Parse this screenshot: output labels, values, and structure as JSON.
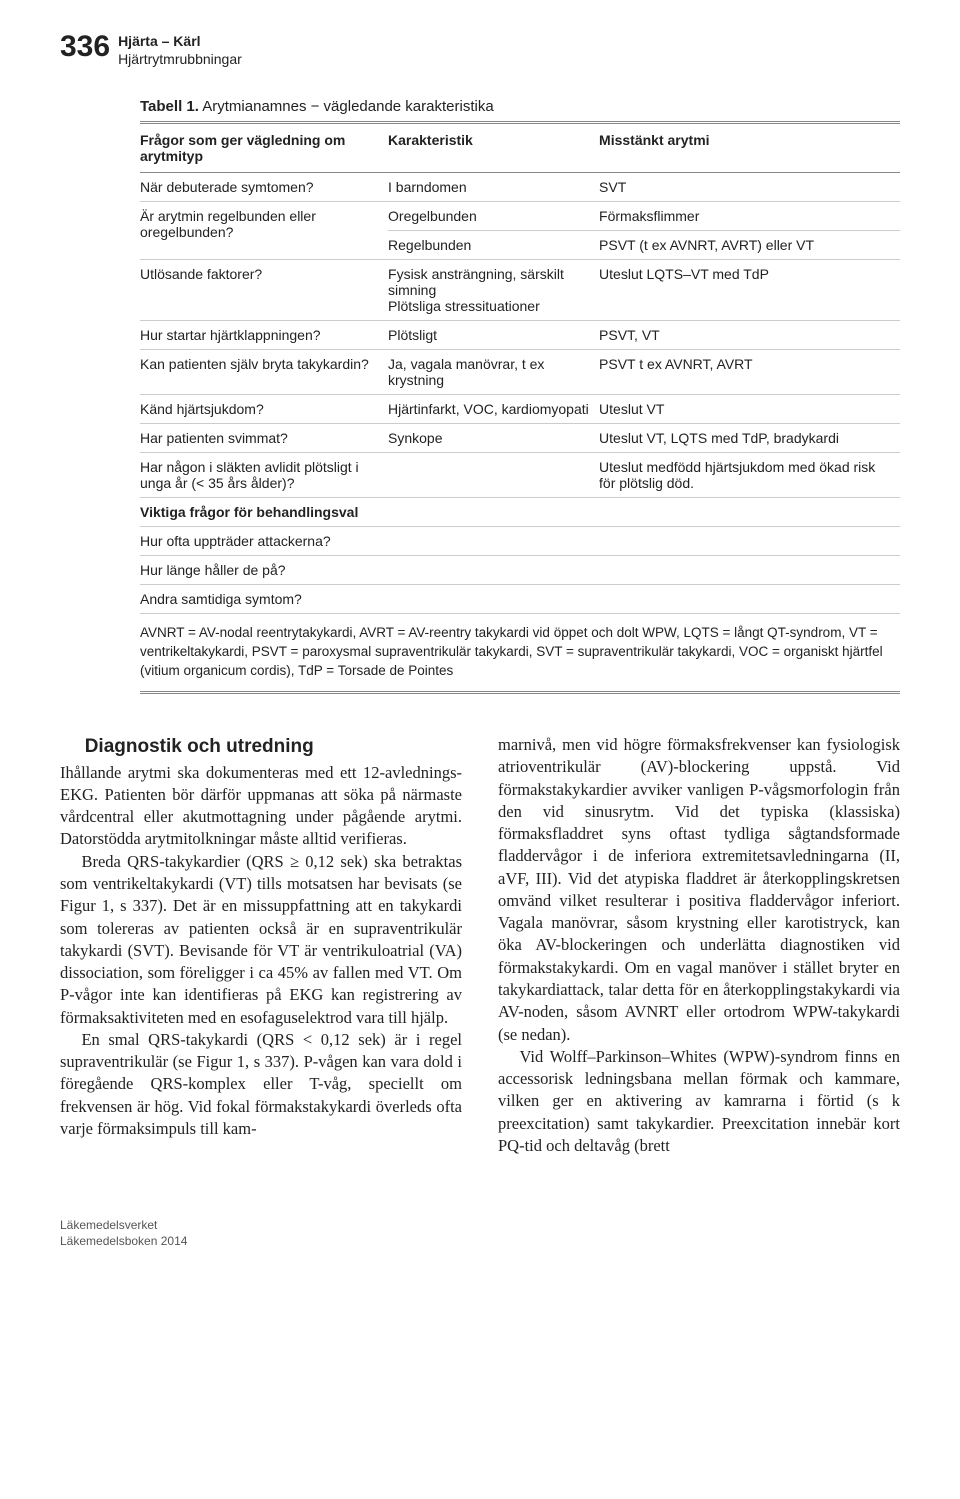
{
  "header": {
    "page_number": "336",
    "line1": "Hjärta – Kärl",
    "line2": "Hjärtrytmrubbningar"
  },
  "table": {
    "title_bold": "Tabell 1.",
    "title_rest": " Arytmianamnes − vägledande karakteristika",
    "columns": [
      "Frågor som ger vägledning om arytmityp",
      "Karakteristik",
      "Misstänkt arytmi"
    ],
    "rows": [
      {
        "q": "När debuterade symtomen?",
        "k": "I barndomen",
        "m": "SVT"
      },
      {
        "q": "Är arytmin regelbunden eller oregelbunden?",
        "k_multi": [
          "Oregelbunden",
          "Regelbunden"
        ],
        "m_multi": [
          "Förmaksflimmer",
          "PSVT (t ex AVNRT, AVRT) eller VT"
        ]
      },
      {
        "q": "Utlösande faktorer?",
        "k": "Fysisk ansträngning, särskilt simning\nPlötsliga stressituationer",
        "m": "Uteslut LQTS–VT med TdP"
      },
      {
        "q": "Hur startar hjärtklappningen?",
        "k": "Plötsligt",
        "m": "PSVT, VT"
      },
      {
        "q": "Kan patienten själv bryta takykardin?",
        "k": "Ja, vagala manövrar, t ex krystning",
        "m": "PSVT t ex AVNRT, AVRT"
      },
      {
        "q": "Känd hjärtsjukdom?",
        "k": "Hjärtinfarkt, VOC, kardiomyopati",
        "m": "Uteslut VT"
      },
      {
        "q": "Har patienten svimmat?",
        "k": "Synkope",
        "m": "Uteslut VT, LQTS med TdP, bradykardi"
      },
      {
        "q": "Har någon i släkten avlidit plötsligt i unga år (< 35 års ålder)?",
        "k": "",
        "m": "Uteslut medfödd hjärtsjukdom med ökad risk för plötslig död."
      },
      {
        "q": "Viktiga frågor för behandlingsval",
        "bold": true
      },
      {
        "q": "Hur ofta uppträder attackerna?"
      },
      {
        "q": "Hur länge håller de på?"
      },
      {
        "q": "Andra samtidiga symtom?"
      }
    ],
    "abbrev": "AVNRT = AV-nodal reentrytakykardi, AVRT = AV-reentry takykardi vid öppet och dolt WPW, LQTS = långt QT-syndrom, VT = ventrikeltakykardi, PSVT = paroxysmal supraventrikulär takykardi, SVT = supraventrikulär takykardi, VOC = organiskt hjärtfel (vitium organicum cordis), TdP = Torsade de Pointes"
  },
  "body": {
    "section_heading": "Diagnostik och utredning",
    "left": [
      "Ihållande arytmi ska dokumenteras med ett 12-avlednings-EKG. Patienten bör därför uppmanas att söka på närmaste vårdcentral eller akutmottagning under pågående arytmi. Datorstödda arytmitolkningar måste alltid verifieras.",
      "Breda QRS-takykardier (QRS ≥ 0,12 sek) ska betraktas som ventrikeltakykardi (VT) tills motsatsen har bevisats (se Figur 1, s 337). Det är en missuppfattning att en takykardi som tolereras av patienten också är en supraventrikulär takykardi (SVT). Bevisande för VT är ventrikuloatrial (VA) dissociation, som föreligger i ca 45% av fallen med VT. Om P-vågor inte kan identifieras på EKG kan registrering av förmaksaktiviteten med en esofaguselektrod vara till hjälp.",
      "En smal QRS-takykardi (QRS < 0,12 sek) är i regel supraventrikulär (se Figur 1, s 337). P-vågen kan vara dold i föregående QRS-komplex eller T-våg, speciellt om frekvensen är hög. Vid fokal förmakstakykardi överleds ofta varje förmaksimpuls till kam-"
    ],
    "right": [
      "marnivå, men vid högre förmaksfrekvenser kan fysiologisk atrioventrikulär (AV)-blockering uppstå. Vid förmakstakykardier avviker vanligen P-vågsmorfologin från den vid sinusrytm. Vid det typiska (klassiska) förmaksfladdret syns oftast tydliga sågtandsformade fladdervågor i de inferiora extremitetsavledningarna (II, aVF, III). Vid det atypiska fladdret är återkopplingskretsen omvänd vilket resulterar i positiva fladdervågor inferiort. Vagala manövrar, såsom krystning eller karotistryck, kan öka AV-blockeringen och underlätta diagnostiken vid förmakstakykardi. Om en vagal manöver i stället bryter en takykardiattack, talar detta för en återkopplingstakykardi via AV-noden, såsom AVNRT eller ortodrom WPW-takykardi (se nedan).",
      "Vid Wolff–Parkinson–Whites (WPW)-syndrom finns en accessorisk ledningsbana mellan förmak och kammare, vilken ger en aktivering av kamrarna i förtid (s k preexcitation) samt takykardier. Preexcitation innebär kort PQ-tid och deltavåg (brett"
    ]
  },
  "footer": {
    "line1": "Läkemedelsverket",
    "line2": "Läkemedelsboken 2014"
  }
}
